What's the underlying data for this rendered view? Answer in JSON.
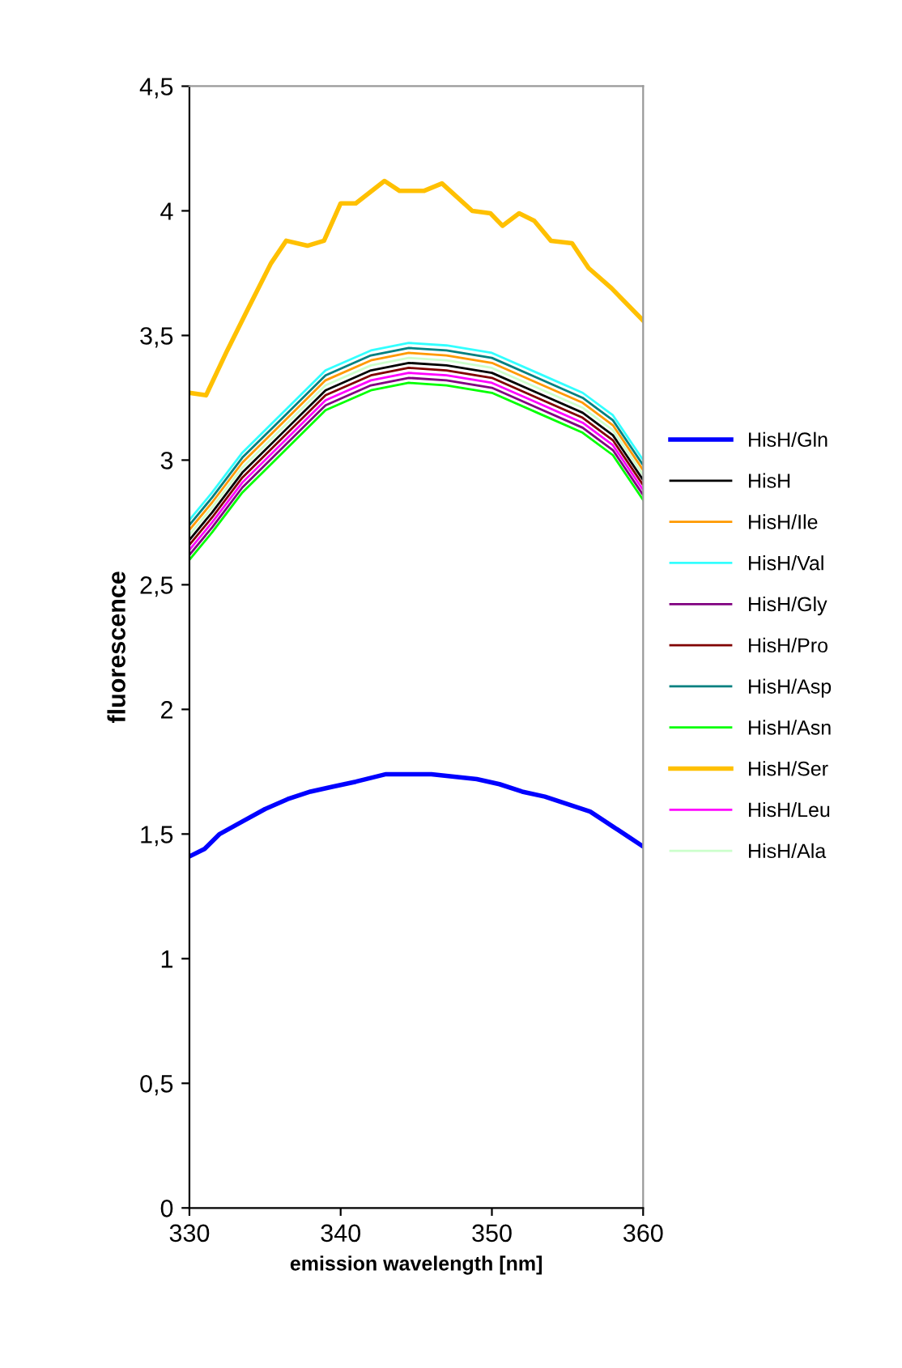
{
  "chart_data": {
    "type": "line",
    "xlabel": "emission wavelength [nm]",
    "ylabel": "fluorescence",
    "xlim": [
      330,
      360
    ],
    "xticks": [
      330,
      340,
      350,
      360
    ],
    "ylim": [
      0,
      4.5
    ],
    "yticks": [
      0,
      {
        "value": 0.5,
        "label": "0,5"
      },
      1,
      {
        "value": 1.5,
        "label": "1,5"
      },
      2,
      {
        "value": 2.5,
        "label": "2,5"
      },
      3,
      {
        "value": 3.5,
        "label": "3,5"
      },
      4,
      {
        "value": 4.5,
        "label": "4,5"
      }
    ],
    "grid": false,
    "legend": "right",
    "marker": "none",
    "line_style": "solid",
    "x": [
      330,
      331.5,
      333.5,
      336.5,
      339,
      342,
      344.5,
      347,
      350,
      353,
      356,
      358,
      360
    ],
    "series": [
      {
        "name": "HisH/Gln",
        "color": "#0000ff",
        "x": [
          330,
          331,
          332,
          333.5,
          335,
          336.5,
          338,
          339.5,
          341,
          343,
          344.5,
          346,
          347.5,
          349,
          350.5,
          352,
          353.5,
          355,
          356.5,
          358,
          359,
          360
        ],
        "values": [
          1.41,
          1.44,
          1.5,
          1.55,
          1.6,
          1.64,
          1.67,
          1.69,
          1.71,
          1.74,
          1.74,
          1.74,
          1.73,
          1.72,
          1.7,
          1.67,
          1.65,
          1.62,
          1.59,
          1.53,
          1.49,
          1.45
        ]
      },
      {
        "name": "HisH",
        "color": "#000000",
        "values": [
          2.68,
          2.79,
          2.95,
          3.13,
          3.28,
          3.36,
          3.39,
          3.38,
          3.35,
          3.27,
          3.19,
          3.1,
          2.92
        ]
      },
      {
        "name": "HisH/Ile",
        "color": "#ff9900",
        "values": [
          2.72,
          2.83,
          2.99,
          3.17,
          3.32,
          3.4,
          3.43,
          3.42,
          3.39,
          3.31,
          3.23,
          3.14,
          2.96
        ]
      },
      {
        "name": "HisH/Val",
        "color": "#33ffff",
        "values": [
          2.76,
          2.87,
          3.03,
          3.21,
          3.36,
          3.44,
          3.47,
          3.46,
          3.43,
          3.35,
          3.27,
          3.18,
          3.0
        ]
      },
      {
        "name": "HisH/Gly",
        "color": "#800080",
        "values": [
          2.62,
          2.73,
          2.89,
          3.07,
          3.22,
          3.3,
          3.33,
          3.32,
          3.29,
          3.21,
          3.13,
          3.04,
          2.86
        ]
      },
      {
        "name": "HisH/Pro",
        "color": "#800000",
        "values": [
          2.66,
          2.77,
          2.93,
          3.11,
          3.26,
          3.34,
          3.37,
          3.36,
          3.33,
          3.25,
          3.17,
          3.08,
          2.9
        ]
      },
      {
        "name": "HisH/Asp",
        "color": "#008080",
        "values": [
          2.74,
          2.85,
          3.01,
          3.19,
          3.34,
          3.42,
          3.45,
          3.44,
          3.41,
          3.33,
          3.25,
          3.16,
          2.98
        ]
      },
      {
        "name": "HisH/Asn",
        "color": "#00ff00",
        "values": [
          2.6,
          2.71,
          2.87,
          3.05,
          3.2,
          3.28,
          3.31,
          3.3,
          3.27,
          3.19,
          3.11,
          3.02,
          2.84
        ]
      },
      {
        "name": "HisH/Ser",
        "color": "#ffc000",
        "x": [
          330,
          331.1,
          332.5,
          333.9,
          335.4,
          336.4,
          337.8,
          338.9,
          340,
          341,
          342.9,
          343.9,
          345.5,
          346.7,
          348.7,
          349.9,
          350.7,
          351.8,
          352.8,
          353.9,
          355.3,
          356.4,
          357.9,
          360
        ],
        "values": [
          3.27,
          3.26,
          3.44,
          3.61,
          3.79,
          3.88,
          3.86,
          3.88,
          4.03,
          4.03,
          4.12,
          4.08,
          4.08,
          4.11,
          4.0,
          3.99,
          3.94,
          3.99,
          3.96,
          3.88,
          3.87,
          3.77,
          3.69,
          3.56
        ]
      },
      {
        "name": "HisH/Leu",
        "color": "#ff00ff",
        "values": [
          2.64,
          2.75,
          2.91,
          3.09,
          3.24,
          3.32,
          3.35,
          3.34,
          3.31,
          3.23,
          3.15,
          3.06,
          2.88
        ]
      },
      {
        "name": "HisH/Ala",
        "color": "#ccffcc",
        "values": [
          2.7,
          2.81,
          2.97,
          3.15,
          3.3,
          3.38,
          3.41,
          3.4,
          3.37,
          3.29,
          3.21,
          3.12,
          2.94
        ]
      }
    ]
  }
}
